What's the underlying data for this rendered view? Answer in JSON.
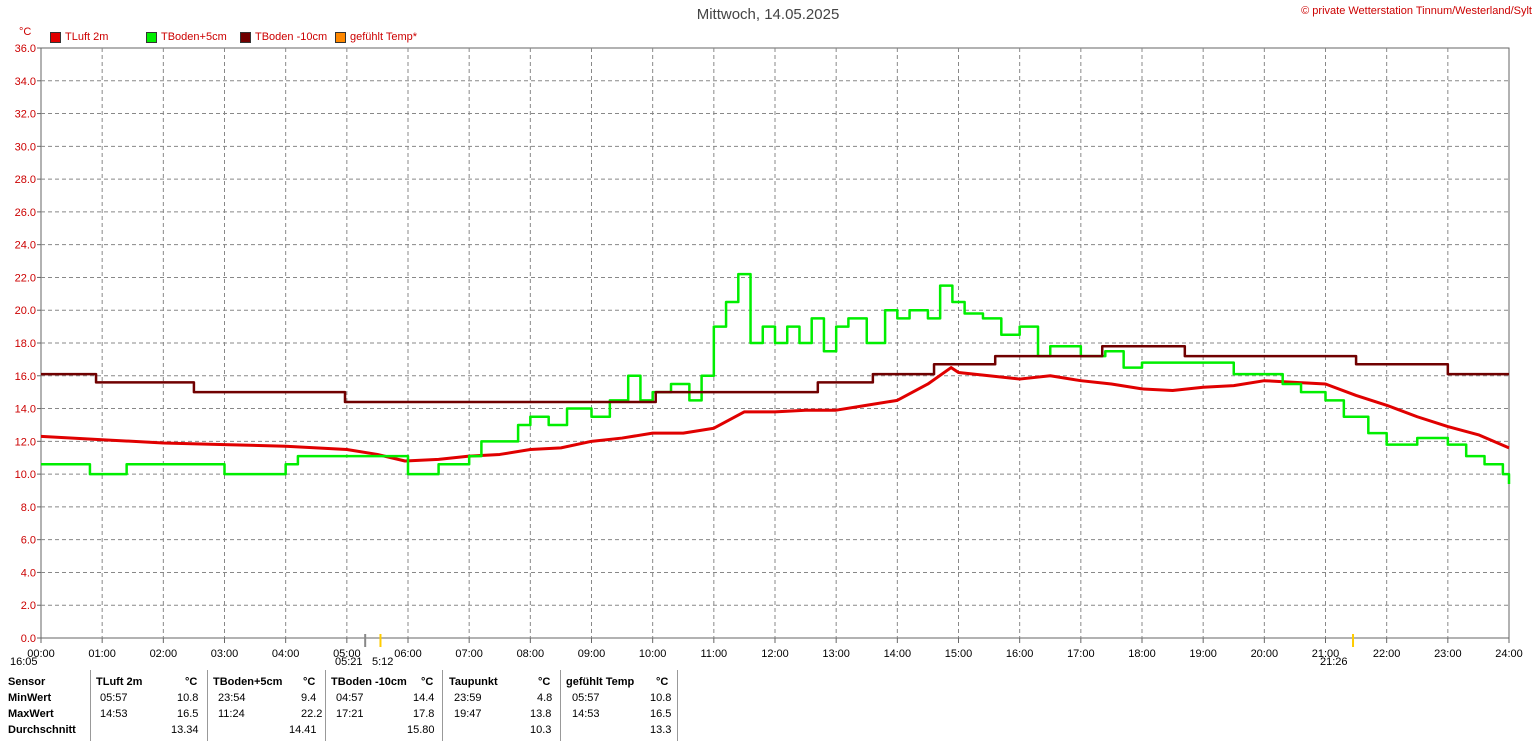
{
  "title": "Mittwoch, 14.05.2025",
  "credit": "© private Wetterstation Tinnum/Westerland/Sylt",
  "unit_label": "°C",
  "legend": [
    {
      "label": "TLuft 2m",
      "color": "#e00000"
    },
    {
      "label": "TBoden+5cm",
      "color": "#00ee00"
    },
    {
      "label": "TBoden -10cm",
      "color": "#700000"
    },
    {
      "label": "gefühlt Temp*",
      "color": "#ff8800"
    }
  ],
  "markers": {
    "sunrise_left": "16:05",
    "sunrise_mid_a": "05:21",
    "sunrise_mid_b": "5:12",
    "sunset": "21:26"
  },
  "chart_data": {
    "type": "line",
    "ylim": [
      0,
      36
    ],
    "y_ticks": [
      "0.0",
      "2.0",
      "4.0",
      "6.0",
      "8.0",
      "10.0",
      "12.0",
      "14.0",
      "16.0",
      "18.0",
      "20.0",
      "22.0",
      "24.0",
      "26.0",
      "28.0",
      "30.0",
      "32.0",
      "34.0",
      "36.0"
    ],
    "x_ticks": [
      "00:00",
      "01:00",
      "02:00",
      "03:00",
      "04:00",
      "05:00",
      "06:00",
      "07:00",
      "08:00",
      "09:00",
      "10:00",
      "11:00",
      "12:00",
      "13:00",
      "14:00",
      "15:00",
      "16:00",
      "17:00",
      "18:00",
      "19:00",
      "20:00",
      "21:00",
      "22:00",
      "23:00",
      "24:00"
    ],
    "grid": true,
    "series": [
      {
        "name": "TLuft 2m",
        "color": "#e00000",
        "x": [
          0,
          1,
          2,
          3,
          4,
          5,
          5.5,
          5.95,
          6.5,
          7,
          7.5,
          8,
          8.5,
          9,
          9.5,
          10,
          10.5,
          11,
          11.5,
          12,
          12.5,
          13,
          13.5,
          14,
          14.5,
          14.88,
          15,
          15.5,
          16,
          16.5,
          17,
          17.5,
          18,
          18.5,
          19,
          19.5,
          20,
          20.5,
          21,
          21.5,
          22,
          22.5,
          23,
          23.5,
          24
        ],
        "y": [
          12.3,
          12.1,
          11.9,
          11.8,
          11.7,
          11.5,
          11.2,
          10.8,
          10.9,
          11.1,
          11.2,
          11.5,
          11.6,
          12.0,
          12.2,
          12.5,
          12.5,
          12.8,
          13.8,
          13.8,
          13.9,
          13.9,
          14.2,
          14.5,
          15.5,
          16.5,
          16.2,
          16.0,
          15.8,
          16.0,
          15.7,
          15.5,
          15.2,
          15.1,
          15.3,
          15.4,
          15.7,
          15.6,
          15.5,
          14.8,
          14.2,
          13.5,
          12.9,
          12.4,
          11.6
        ]
      },
      {
        "name": "TBoden+5cm",
        "color": "#00ee00",
        "x": [
          0,
          0.5,
          0.8,
          1.4,
          2,
          2.5,
          3,
          3.5,
          4,
          4.2,
          5,
          5.8,
          6,
          6.2,
          6.5,
          7,
          7.2,
          7.5,
          7.8,
          8,
          8.3,
          8.6,
          9,
          9.3,
          9.6,
          9.8,
          10,
          10.3,
          10.6,
          10.8,
          11,
          11.2,
          11.4,
          11.6,
          11.8,
          12,
          12.2,
          12.4,
          12.6,
          12.8,
          13,
          13.2,
          13.5,
          13.8,
          14,
          14.2,
          14.5,
          14.7,
          14.9,
          15.1,
          15.4,
          15.7,
          16,
          16.3,
          16.5,
          17,
          17.4,
          17.7,
          18,
          18.5,
          19,
          19.5,
          20,
          20.3,
          20.6,
          21,
          21.3,
          21.7,
          22,
          22.5,
          23,
          23.3,
          23.6,
          23.9,
          24
        ],
        "y": [
          10.6,
          10.6,
          10.0,
          10.6,
          10.6,
          10.6,
          10.0,
          10.0,
          10.6,
          11.1,
          11.1,
          11.1,
          10.0,
          10.0,
          10.6,
          11.1,
          12.0,
          12.0,
          13.0,
          13.5,
          13.0,
          14.0,
          13.5,
          14.5,
          16.0,
          14.5,
          15.0,
          15.5,
          14.5,
          16.0,
          19.0,
          20.5,
          22.2,
          18.0,
          19.0,
          18.0,
          19.0,
          18.0,
          19.5,
          17.5,
          19.0,
          19.5,
          18.0,
          20.0,
          19.5,
          20.0,
          19.5,
          21.5,
          20.5,
          19.8,
          19.5,
          18.5,
          19.0,
          17.2,
          17.8,
          17.2,
          17.5,
          16.5,
          16.8,
          16.8,
          16.8,
          16.1,
          16.1,
          15.5,
          15.0,
          14.5,
          13.5,
          12.5,
          11.8,
          12.2,
          11.8,
          11.1,
          10.6,
          10.0,
          9.4
        ]
      },
      {
        "name": "TBoden -10cm",
        "color": "#700000",
        "x": [
          0,
          0.9,
          0.9,
          2.5,
          2.5,
          4.97,
          4.97,
          10.05,
          10.05,
          11.45,
          11.45,
          12.7,
          12.7,
          13.6,
          13.6,
          14.6,
          14.6,
          15.6,
          15.6,
          17.35,
          17.35,
          18.7,
          18.7,
          21.5,
          21.5,
          23,
          23,
          24
        ],
        "y": [
          16.1,
          16.1,
          15.6,
          15.6,
          15.0,
          15.0,
          14.4,
          14.4,
          15.0,
          15.0,
          15.0,
          15.0,
          15.6,
          15.6,
          16.1,
          16.1,
          16.7,
          16.7,
          17.2,
          17.2,
          17.8,
          17.8,
          17.2,
          17.2,
          16.7,
          16.7,
          16.1,
          16.1
        ]
      }
    ]
  },
  "table": {
    "headers": [
      "Sensor",
      "TLuft 2m",
      "°C",
      "TBoden+5cm",
      "°C",
      "TBoden -10cm",
      "°C",
      "Taupunkt",
      "°C",
      "gefühlt Temp",
      "°C"
    ],
    "rows": [
      {
        "label": "MinWert",
        "cells": [
          "05:57",
          "10.8",
          "23:54",
          "9.4",
          "04:57",
          "14.4",
          "23:59",
          "4.8",
          "05:57",
          "10.8"
        ]
      },
      {
        "label": "MaxWert",
        "cells": [
          "14:53",
          "16.5",
          "11:24",
          "22.2",
          "17:21",
          "17.8",
          "19:47",
          "13.8",
          "14:53",
          "16.5"
        ]
      },
      {
        "label": "Durchschnitt",
        "cells": [
          "",
          "13.34",
          "",
          "14.41",
          "",
          "15.80",
          "",
          "10.3",
          "",
          "13.3"
        ]
      }
    ]
  }
}
